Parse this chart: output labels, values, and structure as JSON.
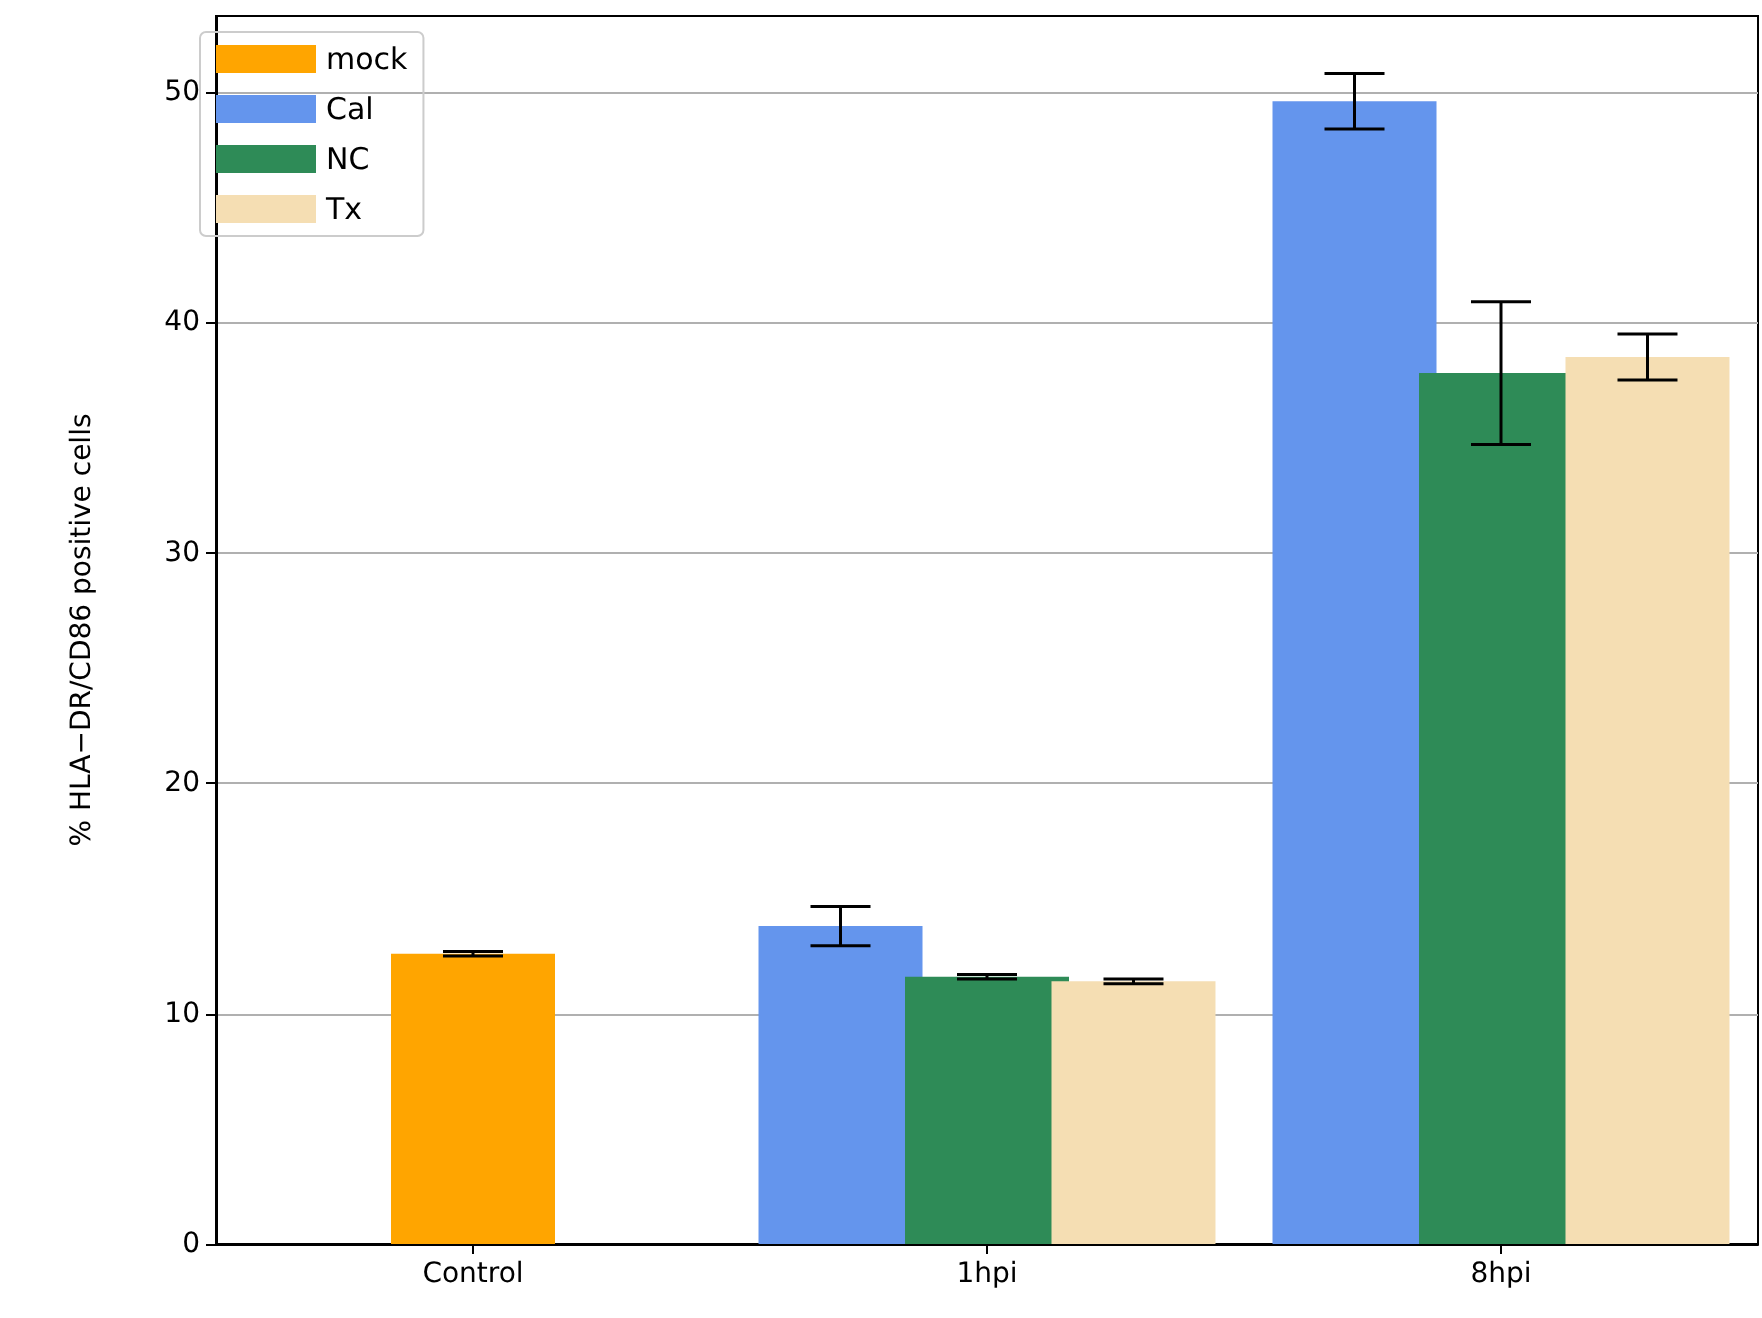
{
  "chart_data": {
    "type": "bar",
    "ylabel": "% HLA−DR/CD86 positive cells",
    "categories": [
      "Control",
      "1hpi",
      "8hpi"
    ],
    "series": [
      {
        "name": "mock",
        "color": "#ffa500",
        "values": [
          12.6,
          null,
          null
        ],
        "errors": [
          0.1,
          null,
          null
        ]
      },
      {
        "name": "Cal",
        "color": "#6495ed",
        "values": [
          null,
          13.8,
          49.6
        ],
        "errors": [
          null,
          0.85,
          1.2
        ]
      },
      {
        "name": "NC",
        "color": "#2e8b57",
        "values": [
          null,
          11.6,
          37.8
        ],
        "errors": [
          null,
          0.1,
          3.1
        ]
      },
      {
        "name": "Tx",
        "color": "#f5deb3",
        "values": [
          null,
          11.4,
          38.5
        ],
        "errors": [
          null,
          0.1,
          1.0
        ]
      }
    ],
    "ylim": [
      0,
      53.3
    ],
    "yticks": [
      0,
      10,
      20,
      30,
      40,
      50
    ],
    "grid": "y",
    "legend": "top left"
  }
}
